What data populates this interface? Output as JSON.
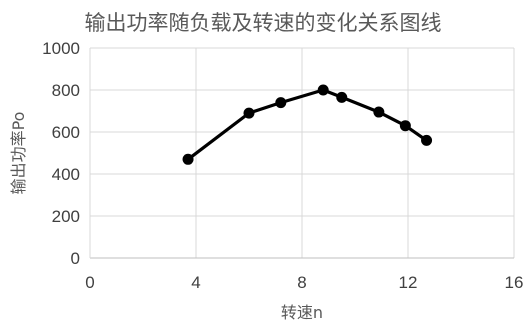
{
  "chart_data": {
    "type": "scatter",
    "title": "输出功率随负载及转速的变化关系图线",
    "xlabel": "转速n",
    "ylabel": "输出功率Po",
    "xlim": [
      0,
      16
    ],
    "ylim": [
      0,
      1000
    ],
    "x_ticks": [
      "0",
      "4",
      "8",
      "12",
      "16"
    ],
    "y_ticks": [
      "0",
      "200",
      "400",
      "600",
      "800",
      "1000"
    ],
    "grid": true,
    "legend": "none",
    "series": [
      {
        "x": [
          3.7,
          6.0,
          7.2,
          8.8,
          9.5,
          10.9,
          11.9,
          12.7
        ],
        "y": [
          470,
          690,
          740,
          800,
          765,
          695,
          630,
          560
        ],
        "color": "#000000",
        "marker": "circle",
        "line": "straight"
      }
    ]
  }
}
